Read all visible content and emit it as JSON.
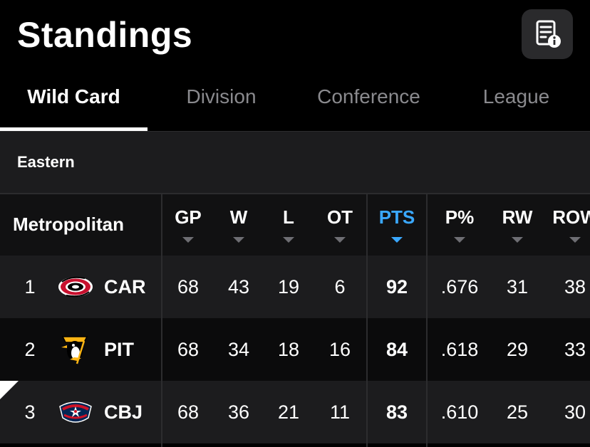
{
  "header": {
    "title": "Standings",
    "info_icon": "document-info-icon"
  },
  "tabs": [
    {
      "label": "Wild Card",
      "active": true
    },
    {
      "label": "Division",
      "active": false
    },
    {
      "label": "Conference",
      "active": false
    },
    {
      "label": "League",
      "active": false
    }
  ],
  "conference": "Eastern",
  "table": {
    "group": "Metropolitan",
    "columns": [
      "GP",
      "W",
      "L",
      "OT",
      "PTS",
      "P%",
      "RW",
      "ROW"
    ],
    "sorted_column": "PTS",
    "accent_color": "#3aa8ff",
    "rows": [
      {
        "rank": "1",
        "team": "CAR",
        "logo": "hurricanes-logo-icon",
        "gp": "68",
        "w": "43",
        "l": "19",
        "ot": "6",
        "pts": "92",
        "pct": ".676",
        "rw": "31",
        "row": "38"
      },
      {
        "rank": "2",
        "team": "PIT",
        "logo": "penguins-logo-icon",
        "gp": "68",
        "w": "34",
        "l": "18",
        "ot": "16",
        "pts": "84",
        "pct": ".618",
        "rw": "29",
        "row": "33"
      },
      {
        "rank": "3",
        "team": "CBJ",
        "logo": "blue-jackets-logo-icon",
        "gp": "68",
        "w": "36",
        "l": "21",
        "ot": "11",
        "pts": "83",
        "pct": ".610",
        "rw": "25",
        "row": "30"
      }
    ]
  }
}
